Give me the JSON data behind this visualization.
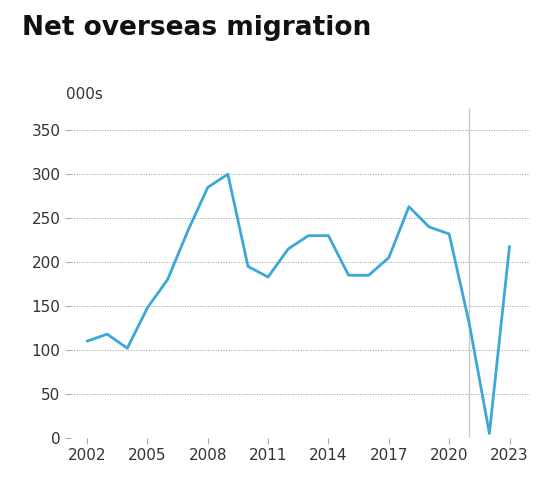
{
  "title": "Net overseas migration",
  "ylabel": "000s",
  "years": [
    2002,
    2003,
    2004,
    2005,
    2006,
    2007,
    2008,
    2009,
    2010,
    2011,
    2012,
    2013,
    2014,
    2015,
    2016,
    2017,
    2018,
    2019,
    2020,
    2021,
    2022,
    2023
  ],
  "values": [
    110,
    118,
    102,
    148,
    180,
    235,
    285,
    300,
    195,
    183,
    215,
    230,
    230,
    185,
    185,
    205,
    263,
    240,
    232,
    130,
    5,
    218
  ],
  "line_color": "#3aa8d8",
  "line_width": 2.0,
  "vline_x": 2021.0,
  "vline_color": "#c8c8c8",
  "ylim": [
    0,
    375
  ],
  "yticks": [
    0,
    50,
    100,
    150,
    200,
    250,
    300,
    350
  ],
  "xticks": [
    2002,
    2005,
    2008,
    2011,
    2014,
    2017,
    2020,
    2023
  ],
  "xlim": [
    2001.2,
    2024.0
  ],
  "background_color": "#ffffff",
  "title_fontsize": 19,
  "axis_fontsize": 11,
  "tick_color": "#333333",
  "grid_color": "#333333"
}
